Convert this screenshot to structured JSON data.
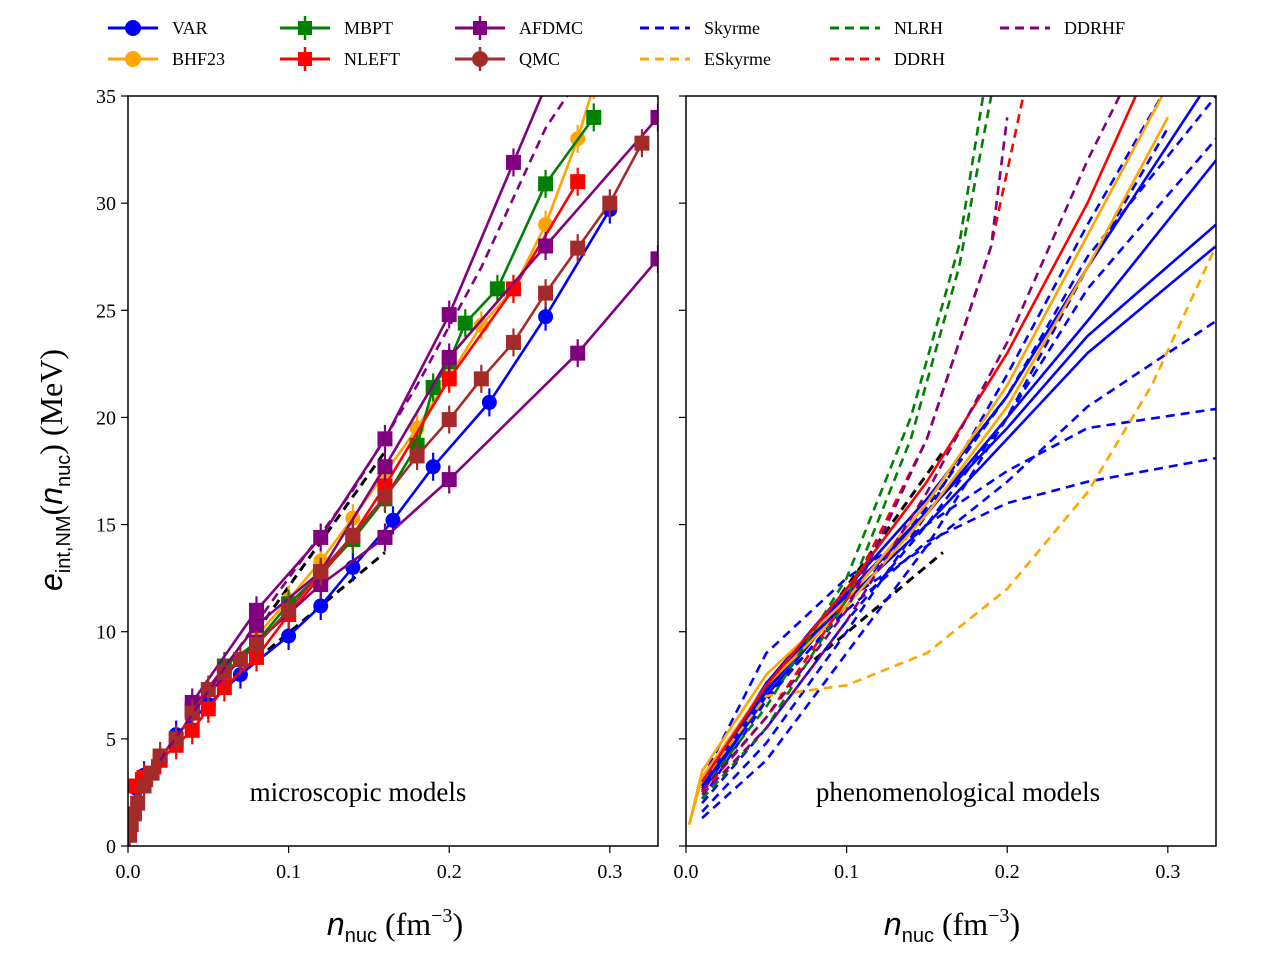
{
  "legend": [
    {
      "label": "VAR",
      "color": "#0000ff",
      "style": "solid",
      "marker": "circle"
    },
    {
      "label": "BHF23",
      "color": "#ffa500",
      "style": "solid",
      "marker": "circle"
    },
    {
      "label": "MBPT",
      "color": "#008000",
      "style": "solid",
      "marker": "square-err"
    },
    {
      "label": "NLEFT",
      "color": "#ff0000",
      "style": "solid",
      "marker": "square-err"
    },
    {
      "label": "AFDMC",
      "color": "#800080",
      "style": "solid",
      "marker": "square-err"
    },
    {
      "label": "QMC",
      "color": "#a52a2a",
      "style": "solid",
      "marker": "circle-err"
    },
    {
      "label": "Skyrme",
      "color": "#0000ff",
      "style": "dashed",
      "marker": "none"
    },
    {
      "label": "ESkyrme",
      "color": "#ffa500",
      "style": "dashed",
      "marker": "none"
    },
    {
      "label": "NLRH",
      "color": "#008000",
      "style": "dashed",
      "marker": "none"
    },
    {
      "label": "DDRH",
      "color": "#ff0000",
      "style": "dashed",
      "marker": "none"
    },
    {
      "label": "DDRHF",
      "color": "#800080",
      "style": "dashed",
      "marker": "none"
    }
  ],
  "axes": {
    "ylabel_main": "e",
    "ylabel_sub": "int,NM",
    "ylabel_arg_main": "n",
    "ylabel_arg_sub": "nuc",
    "ylabel_unit": "(MeV)",
    "xlabel_main": "n",
    "xlabel_sub": "nuc",
    "xlabel_unit": "(fm",
    "xlabel_exp": "−3",
    "xlabel_close": ")"
  },
  "chart_data": [
    {
      "type": "line",
      "panel": "left",
      "note": "microscopic models",
      "xlim": [
        0,
        0.33
      ],
      "ylim": [
        0,
        35
      ],
      "xticks": [
        "0.0",
        "0.1",
        "0.2",
        "0.3"
      ],
      "yticks": [
        "0",
        "5",
        "10",
        "15",
        "20",
        "25",
        "30",
        "35"
      ],
      "series": [
        {
          "name": "VAR",
          "color": "#0000ff",
          "dash": false,
          "marker": "circle",
          "x": [
            0.005,
            0.01,
            0.02,
            0.03,
            0.05,
            0.07,
            0.1,
            0.12,
            0.14,
            0.165,
            0.19,
            0.225,
            0.26,
            0.3
          ],
          "y": [
            2.7,
            3.3,
            4.0,
            5.2,
            6.6,
            8.0,
            9.8,
            11.2,
            13.0,
            15.2,
            17.7,
            20.7,
            24.7,
            29.7
          ]
        },
        {
          "name": "BHF23",
          "color": "#ffa500",
          "dash": false,
          "marker": "circle",
          "x": [
            0.08,
            0.1,
            0.12,
            0.14,
            0.16,
            0.18,
            0.2,
            0.22,
            0.24,
            0.26,
            0.28,
            0.29
          ],
          "y": [
            9.8,
            11.5,
            13.3,
            15.3,
            17.4,
            19.5,
            21.9,
            24.3,
            26.0,
            29.0,
            33.0,
            35.5
          ]
        },
        {
          "name": "MBPT",
          "color": "#008000",
          "dash": false,
          "marker": "square",
          "x": [
            0.06,
            0.08,
            0.1,
            0.12,
            0.14,
            0.16,
            0.18,
            0.19,
            0.2,
            0.21,
            0.23,
            0.26,
            0.29
          ],
          "y": [
            8.4,
            9.5,
            11.3,
            12.7,
            14.3,
            16.2,
            18.7,
            21.4,
            22.6,
            24.4,
            26.0,
            30.9,
            34.0
          ]
        },
        {
          "name": "NLEFT",
          "color": "#ff0000",
          "dash": false,
          "marker": "square",
          "x": [
            0.005,
            0.01,
            0.02,
            0.03,
            0.04,
            0.05,
            0.06,
            0.08,
            0.1,
            0.12,
            0.14,
            0.16,
            0.2,
            0.24,
            0.28
          ],
          "y": [
            2.8,
            3.2,
            4.0,
            4.7,
            5.4,
            6.4,
            7.4,
            8.8,
            10.8,
            12.6,
            14.5,
            16.8,
            21.8,
            26.0,
            31.0
          ]
        },
        {
          "name": "AFDMC-1",
          "color": "#800080",
          "dash": false,
          "marker": "square",
          "x": [
            0.04,
            0.08,
            0.12,
            0.16,
            0.2,
            0.24,
            0.28
          ],
          "y": [
            6.7,
            11.0,
            14.4,
            19.0,
            24.8,
            31.9,
            39.0
          ]
        },
        {
          "name": "AFDMC-2",
          "color": "#800080",
          "dash": false,
          "marker": "square",
          "x": [
            0.04,
            0.08,
            0.12,
            0.16,
            0.2,
            0.26,
            0.33
          ],
          "y": [
            6.4,
            10.3,
            12.8,
            17.7,
            22.8,
            28.0,
            34.0
          ]
        },
        {
          "name": "AFDMC-3",
          "color": "#800080",
          "dash": false,
          "marker": "square",
          "x": [
            0.04,
            0.08,
            0.12,
            0.16,
            0.2,
            0.28,
            0.33
          ],
          "y": [
            6.3,
            9.5,
            12.2,
            14.4,
            17.1,
            23.0,
            27.4
          ]
        },
        {
          "name": "QMC",
          "color": "#a52a2a",
          "dash": false,
          "marker": "square",
          "x": [
            0.001,
            0.002,
            0.004,
            0.006,
            0.01,
            0.015,
            0.02,
            0.03,
            0.04,
            0.05,
            0.06,
            0.07,
            0.08,
            0.1,
            0.12,
            0.14,
            0.16,
            0.18,
            0.2,
            0.22,
            0.24,
            0.26,
            0.28,
            0.3,
            0.32
          ],
          "y": [
            0.5,
            1.0,
            1.5,
            2.0,
            2.8,
            3.4,
            4.2,
            5.0,
            6.2,
            7.3,
            8.1,
            8.7,
            9.4,
            11.0,
            12.8,
            14.5,
            16.3,
            18.2,
            19.9,
            21.8,
            23.5,
            25.8,
            27.9,
            30.0,
            32.8
          ]
        },
        {
          "name": "DDRHF",
          "color": "#800080",
          "dash": true,
          "marker": "none",
          "x": [
            0.02,
            0.06,
            0.1,
            0.14,
            0.18,
            0.22,
            0.26,
            0.3
          ],
          "y": [
            4.0,
            8.3,
            12.5,
            16.6,
            21.5,
            27.0,
            33.5,
            38.0
          ]
        }
      ],
      "reference_band": {
        "x": [
          0.08,
          0.16
        ],
        "y_low": [
          8.7,
          13.7
        ],
        "y_high": [
          10.0,
          18.4
        ]
      }
    },
    {
      "type": "line",
      "panel": "right",
      "note": "phenomenological models",
      "xlim": [
        0,
        0.33
      ],
      "ylim": [
        0,
        35
      ],
      "xticks": [
        "0.0",
        "0.1",
        "0.2",
        "0.3"
      ],
      "yticks": [
        "",
        "",
        "",
        "",
        "",
        "",
        "",
        ""
      ],
      "series": [
        {
          "name": "Skyrme-1",
          "color": "#0000ff",
          "dash": true,
          "x": [
            0.01,
            0.05,
            0.1,
            0.15,
            0.2,
            0.25,
            0.33
          ],
          "y": [
            3.1,
            9.0,
            12.5,
            15.0,
            17.5,
            19.5,
            20.4
          ]
        },
        {
          "name": "Skyrme-2",
          "color": "#0000ff",
          "dash": true,
          "x": [
            0.01,
            0.05,
            0.1,
            0.15,
            0.2,
            0.25,
            0.33
          ],
          "y": [
            3.0,
            7.0,
            11.0,
            14.2,
            16.0,
            17.0,
            18.1
          ]
        },
        {
          "name": "Skyrme-3",
          "color": "#0000ff",
          "dash": true,
          "x": [
            0.01,
            0.05,
            0.1,
            0.15,
            0.2,
            0.25,
            0.33
          ],
          "y": [
            2.8,
            7.6,
            11.5,
            14.0,
            17.0,
            20.5,
            24.5
          ]
        },
        {
          "name": "Skyrme-4",
          "color": "#0000ff",
          "dash": true,
          "x": [
            0.01,
            0.05,
            0.1,
            0.15,
            0.2,
            0.25,
            0.3
          ],
          "y": [
            1.3,
            4.0,
            9.0,
            14.0,
            20.0,
            27.0,
            33.5
          ]
        },
        {
          "name": "Skyrme-5",
          "color": "#0000ff",
          "dash": true,
          "x": [
            0.01,
            0.05,
            0.1,
            0.15,
            0.2,
            0.25,
            0.3
          ],
          "y": [
            1.6,
            4.8,
            10.0,
            15.5,
            22.0,
            29.0,
            35.5
          ]
        },
        {
          "name": "Skyrme-6",
          "color": "#0000ff",
          "dash": true,
          "x": [
            0.01,
            0.05,
            0.1,
            0.15,
            0.2,
            0.25,
            0.33
          ],
          "y": [
            2.0,
            5.5,
            10.5,
            15.0,
            20.0,
            26.0,
            33.0
          ]
        },
        {
          "name": "Skyrme-7",
          "color": "#0000ff",
          "dash": false,
          "x": [
            0.01,
            0.05,
            0.1,
            0.15,
            0.2,
            0.25,
            0.33
          ],
          "y": [
            2.5,
            7.0,
            11.5,
            15.0,
            19.0,
            23.0,
            28.0
          ]
        },
        {
          "name": "Skyrme-8",
          "color": "#0000ff",
          "dash": false,
          "x": [
            0.01,
            0.05,
            0.1,
            0.15,
            0.2,
            0.25,
            0.33
          ],
          "y": [
            2.6,
            7.2,
            11.7,
            15.5,
            20.0,
            24.5,
            32.0
          ]
        },
        {
          "name": "Skyrme-9",
          "color": "#0000ff",
          "dash": false,
          "x": [
            0.01,
            0.05,
            0.1,
            0.15,
            0.2,
            0.25,
            0.33
          ],
          "y": [
            2.7,
            7.4,
            11.8,
            15.6,
            19.5,
            23.8,
            29.0
          ]
        },
        {
          "name": "Skyrme-10",
          "color": "#0000ff",
          "dash": true,
          "x": [
            0.01,
            0.05,
            0.1,
            0.15,
            0.2,
            0.25,
            0.33
          ],
          "y": [
            2.2,
            6.8,
            11.2,
            15.8,
            21.0,
            27.5,
            35.0
          ]
        },
        {
          "name": "Skyrme-11",
          "color": "#0000ff",
          "dash": false,
          "x": [
            0.01,
            0.05,
            0.1,
            0.15,
            0.2,
            0.25,
            0.32
          ],
          "y": [
            2.8,
            7.6,
            12.0,
            16.2,
            21.0,
            27.0,
            35.0
          ]
        },
        {
          "name": "ESkyrme-1",
          "color": "#ffa500",
          "dash": true,
          "x": [
            0.01,
            0.05,
            0.1,
            0.15,
            0.2,
            0.25,
            0.29,
            0.33
          ],
          "y": [
            3.0,
            7.0,
            7.5,
            9.0,
            12.0,
            16.5,
            21.5,
            28.0
          ]
        },
        {
          "name": "ESkyrme-2",
          "color": "#ffa500",
          "dash": false,
          "x": [
            0.002,
            0.01,
            0.05,
            0.1,
            0.15,
            0.2,
            0.25,
            0.3
          ],
          "y": [
            1.0,
            3.5,
            8.0,
            11.5,
            16.0,
            21.5,
            28.5,
            35.5
          ]
        },
        {
          "name": "ESkyrme-3",
          "color": "#ffa500",
          "dash": false,
          "x": [
            0.002,
            0.01,
            0.05,
            0.1,
            0.15,
            0.2,
            0.25,
            0.3
          ],
          "y": [
            1.0,
            3.2,
            7.5,
            11.2,
            15.5,
            20.5,
            27.0,
            34.0
          ]
        },
        {
          "name": "NLRH-1",
          "color": "#008000",
          "dash": true,
          "x": [
            0.01,
            0.05,
            0.1,
            0.14,
            0.17,
            0.19
          ],
          "y": [
            2.2,
            5.5,
            11.5,
            19.0,
            27.0,
            35.0
          ]
        },
        {
          "name": "NLRH-2",
          "color": "#008000",
          "dash": true,
          "x": [
            0.01,
            0.05,
            0.1,
            0.14,
            0.17,
            0.185
          ],
          "y": [
            2.6,
            6.5,
            12.5,
            20.0,
            28.0,
            35.0
          ]
        },
        {
          "name": "DDRH-1",
          "color": "#ff0000",
          "dash": true,
          "x": [
            0.01,
            0.05,
            0.1,
            0.15,
            0.19,
            0.21
          ],
          "y": [
            2.5,
            6.0,
            11.5,
            19.0,
            28.0,
            35.0
          ]
        },
        {
          "name": "DDRH-2",
          "color": "#ff0000",
          "dash": false,
          "x": [
            0.01,
            0.05,
            0.1,
            0.15,
            0.2,
            0.25,
            0.28
          ],
          "y": [
            3.0,
            7.5,
            12.0,
            17.0,
            23.0,
            30.0,
            35.0
          ]
        },
        {
          "name": "DDRHF-1",
          "color": "#800080",
          "dash": true,
          "x": [
            0.01,
            0.05,
            0.1,
            0.15,
            0.19,
            0.2
          ],
          "y": [
            2.6,
            6.0,
            11.0,
            19.0,
            28.0,
            34.0
          ]
        },
        {
          "name": "DDRHF-2",
          "color": "#800080",
          "dash": true,
          "x": [
            0.01,
            0.05,
            0.1,
            0.15,
            0.2,
            0.25,
            0.27
          ],
          "y": [
            2.4,
            5.5,
            10.5,
            16.5,
            23.5,
            32.0,
            35.0
          ]
        }
      ],
      "reference_band": {
        "x": [
          0.08,
          0.16
        ],
        "y_low": [
          8.7,
          13.7
        ],
        "y_high": [
          10.0,
          18.4
        ]
      }
    }
  ]
}
